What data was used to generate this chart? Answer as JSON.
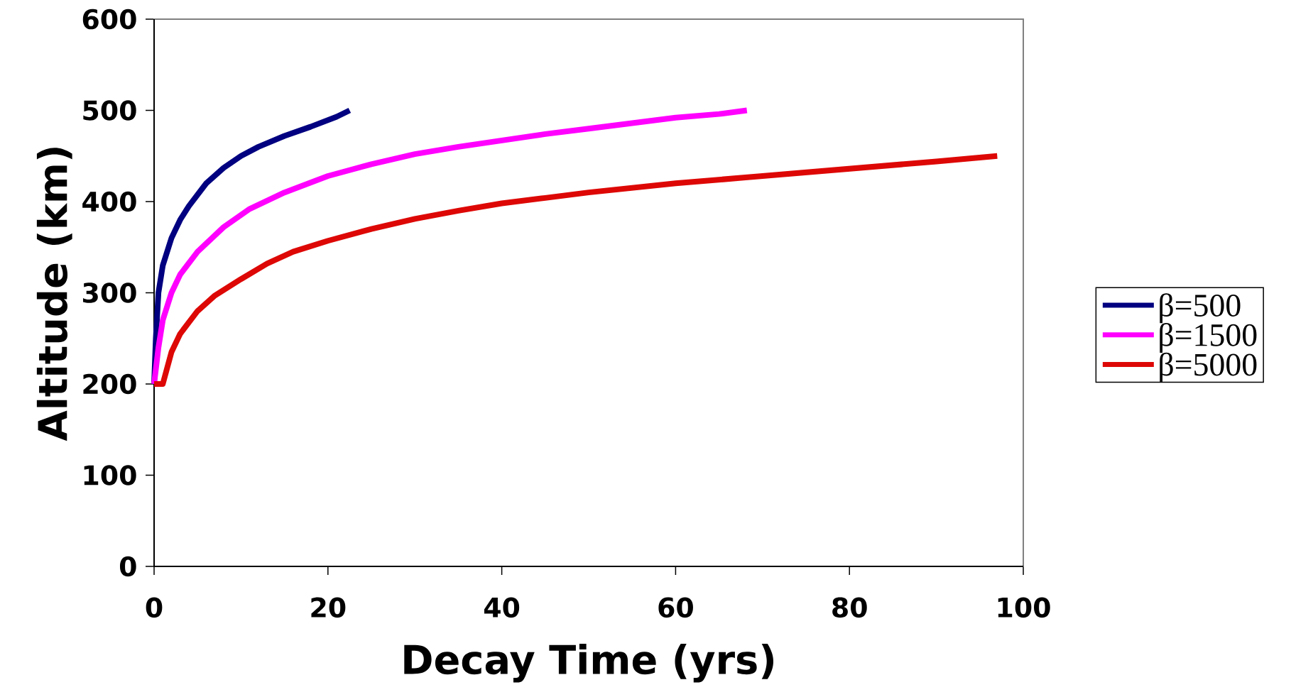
{
  "chart_data": {
    "type": "line",
    "xlabel": "Decay Time (yrs)",
    "ylabel": "Altitude (km)",
    "xlim": [
      0,
      100
    ],
    "xticks": [
      0,
      20,
      40,
      60,
      80,
      100
    ],
    "ylim": [
      0,
      600
    ],
    "yticks": [
      0,
      100,
      200,
      300,
      400,
      500,
      600
    ],
    "legend": "right",
    "grid": false,
    "marker": "none",
    "line_style": "solid",
    "series": [
      {
        "name": "β=500",
        "color": "#000080",
        "x": [
          0,
          0.2,
          0.5,
          1,
          2,
          3,
          4,
          6,
          8,
          10,
          12,
          15,
          18,
          21,
          22.5
        ],
        "values": [
          200,
          250,
          300,
          330,
          360,
          380,
          395,
          420,
          437,
          450,
          460,
          472,
          482,
          493,
          500
        ]
      },
      {
        "name": "β=1500",
        "color": "#ff00ff",
        "x": [
          0,
          0.5,
          1,
          2,
          3,
          5,
          8,
          11,
          15,
          20,
          25,
          30,
          35,
          40,
          45,
          50,
          55,
          60,
          65,
          68.2
        ],
        "values": [
          200,
          240,
          270,
          300,
          320,
          345,
          372,
          392,
          410,
          428,
          441,
          452,
          460,
          467,
          474,
          480,
          486,
          492,
          496,
          500
        ]
      },
      {
        "name": "β=5000",
        "color": "#dd0806",
        "x": [
          0,
          1,
          2,
          3,
          5,
          7,
          10,
          13,
          16,
          20,
          25,
          30,
          35,
          40,
          45,
          50,
          55,
          60,
          70,
          80,
          90,
          97
        ],
        "values": [
          200,
          200,
          235,
          255,
          280,
          297,
          315,
          332,
          345,
          357,
          370,
          381,
          390,
          398,
          404,
          410,
          415,
          420,
          428,
          436,
          444,
          450
        ]
      }
    ]
  }
}
